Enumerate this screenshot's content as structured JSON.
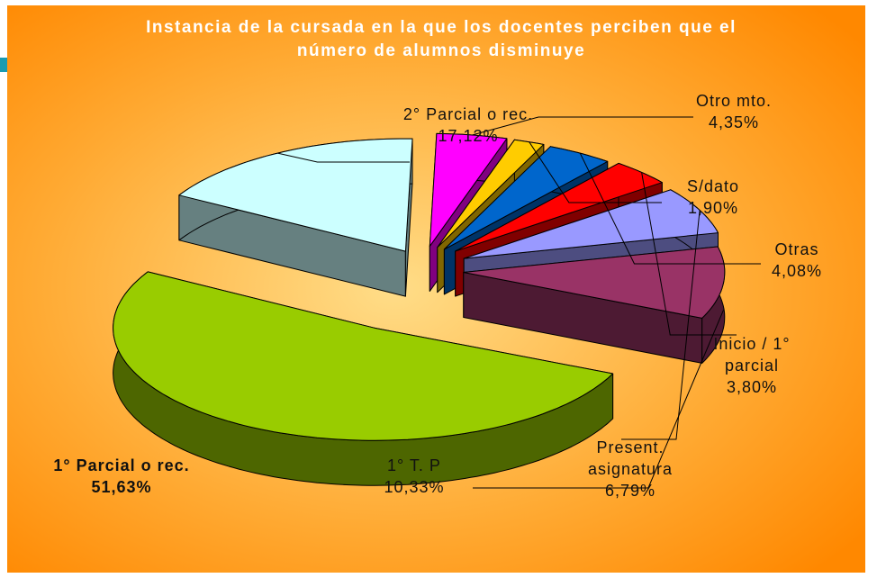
{
  "chart_data": {
    "type": "pie3d",
    "title": "Instancia de la cursada en la que los docentes perciben que el número de alumnos disminuye",
    "categories": [
      "1° Parcial o rec.",
      "2° Parcial o rec.",
      "Otro mto.",
      "S/dato",
      "Otras",
      "Inicio / 1° parcial",
      "Present. asignatura",
      "1° T. P"
    ],
    "values": [
      51.63,
      17.12,
      4.35,
      1.9,
      4.08,
      3.8,
      6.79,
      10.33
    ],
    "value_labels": [
      "51,63%",
      "17,12%",
      "4,35%",
      "1,90%",
      "4,08%",
      "3,80%",
      "6,79%",
      "10,33%"
    ],
    "colors": [
      "#99cc00",
      "#ccffff",
      "#ff00ff",
      "#ffcc00",
      "#0066cc",
      "#ff0000",
      "#9999ff",
      "#993366"
    ]
  }
}
